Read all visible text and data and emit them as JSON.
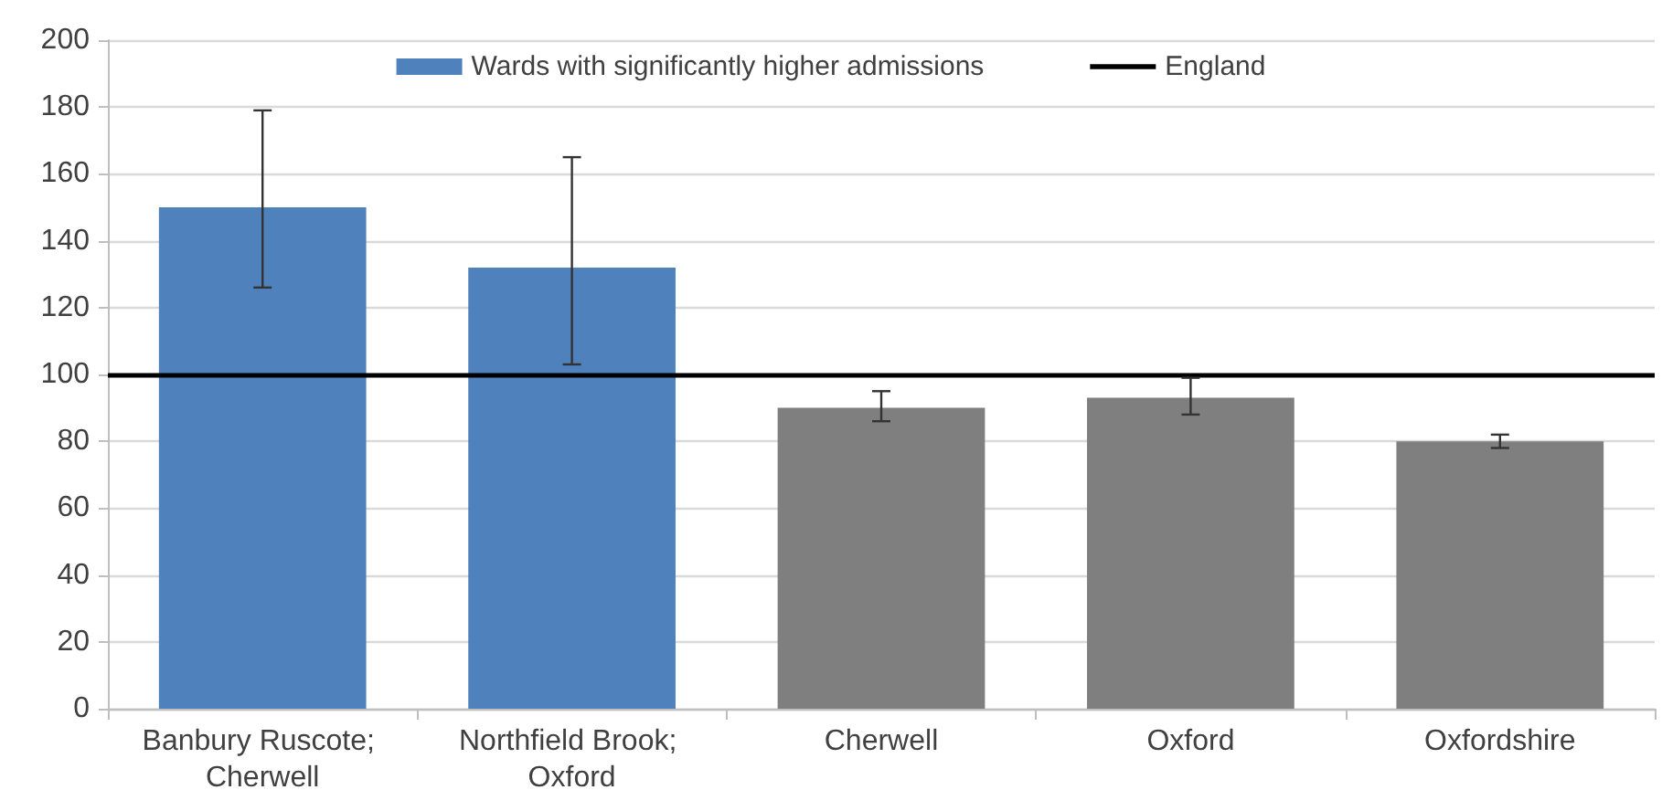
{
  "chart_data": {
    "type": "bar",
    "categories": [
      "Banbury Ruscote; Cherwell",
      "Northfield Brook; Oxford",
      "Cherwell",
      "Oxford",
      "Oxfordshire"
    ],
    "series": [
      {
        "name": "Wards with significantly higher admissions",
        "color": "#4f81bd",
        "values": [
          150,
          132,
          null,
          null,
          null
        ],
        "errors": [
          [
            126,
            179
          ],
          [
            103,
            165
          ],
          null,
          null,
          null
        ]
      },
      {
        "color": "#7f7f7f",
        "values": [
          null,
          null,
          90,
          93,
          80
        ],
        "errors": [
          null,
          null,
          [
            86,
            95
          ],
          [
            88,
            99
          ],
          [
            78,
            82
          ]
        ]
      }
    ],
    "ylim": [
      0,
      200
    ],
    "yticks": [
      0,
      20,
      40,
      60,
      80,
      100,
      120,
      140,
      160,
      180,
      200
    ],
    "grid": "y",
    "legend": "top",
    "ref_lines": [
      {
        "axis": "y",
        "value": 100,
        "label": "England",
        "color": "#000000"
      }
    ]
  }
}
